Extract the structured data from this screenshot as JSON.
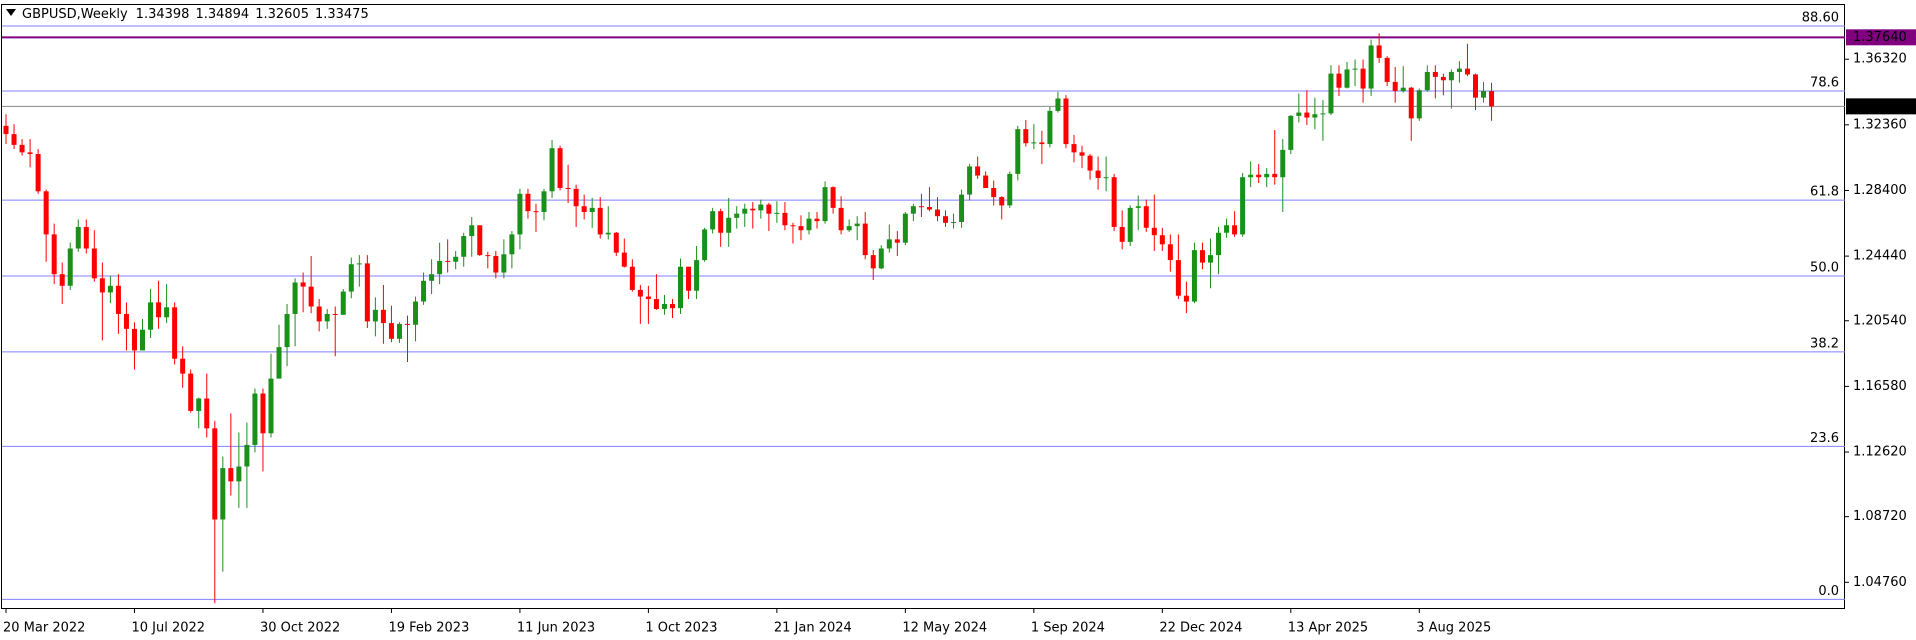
{
  "chart_data": {
    "type": "candlestick",
    "title": "GBPUSD,Weekly",
    "up_color": "#1a8f1a",
    "down_color": "#ff0000",
    "ylim": [
      1.0315,
      1.3965
    ],
    "yticks": [
      {
        "value": 1.3632,
        "label": "1.36320"
      },
      {
        "value": 1.3236,
        "label": "1.32360"
      },
      {
        "value": 1.284,
        "label": "1.28400"
      },
      {
        "value": 1.2444,
        "label": "1.24440"
      },
      {
        "value": 1.2054,
        "label": "1.20540"
      },
      {
        "value": 1.1658,
        "label": "1.16580"
      },
      {
        "value": 1.1262,
        "label": "1.12620"
      },
      {
        "value": 1.0872,
        "label": "1.08720"
      },
      {
        "value": 1.0476,
        "label": "1.04760"
      }
    ],
    "levels_color": "#8080ff",
    "levels": [
      {
        "price": 1.3832,
        "label": "88.60"
      },
      {
        "price": 1.344,
        "label": "78.6"
      },
      {
        "price": 1.2782,
        "label": "61.8"
      },
      {
        "price": 1.2324,
        "label": "50.0"
      },
      {
        "price": 1.1866,
        "label": "38.2"
      },
      {
        "price": 1.1296,
        "label": "23.6"
      },
      {
        "price": 1.0373,
        "label": "0.0"
      }
    ],
    "price_line": {
      "value": 1.3764,
      "label": "1.37640",
      "color": "#800080"
    },
    "categories": [
      "20 Mar 2022",
      null,
      null,
      null,
      null,
      null,
      null,
      null,
      null,
      null,
      null,
      null,
      null,
      null,
      null,
      null,
      "10 Jul 2022",
      null,
      null,
      null,
      null,
      null,
      null,
      null,
      null,
      null,
      null,
      null,
      null,
      null,
      null,
      null,
      "30 Oct 2022",
      null,
      null,
      null,
      null,
      null,
      null,
      null,
      null,
      null,
      null,
      null,
      null,
      null,
      null,
      null,
      "19 Feb 2023",
      null,
      null,
      null,
      null,
      null,
      null,
      null,
      null,
      null,
      null,
      null,
      null,
      null,
      null,
      null,
      "11 Jun 2023",
      null,
      null,
      null,
      null,
      null,
      null,
      null,
      null,
      null,
      null,
      null,
      null,
      null,
      null,
      null,
      "1 Oct 2023",
      null,
      null,
      null,
      null,
      null,
      null,
      null,
      null,
      null,
      null,
      null,
      null,
      null,
      null,
      null,
      "21 Jan 2024",
      null,
      null,
      null,
      null,
      null,
      null,
      null,
      null,
      null,
      null,
      null,
      null,
      null,
      null,
      null,
      "12 May 2024",
      null,
      null,
      null,
      null,
      null,
      null,
      null,
      null,
      null,
      null,
      null,
      null,
      null,
      null,
      null,
      "1 Sep 2024",
      null,
      null,
      null,
      null,
      null,
      null,
      null,
      null,
      null,
      null,
      null,
      null,
      null,
      null,
      null,
      "22 Dec 2024",
      null,
      null,
      null,
      null,
      null,
      null,
      null,
      null,
      null,
      null,
      null,
      null,
      null,
      null,
      null,
      "13 Apr 2025",
      null,
      null,
      null,
      null,
      null,
      null,
      null,
      null,
      null,
      null,
      null,
      null,
      null,
      null,
      null,
      "3 Aug 2025",
      null,
      null,
      null,
      null,
      null,
      null,
      null,
      null,
      null
    ],
    "open": [
      1.323,
      1.318,
      1.3115,
      1.307,
      1.306,
      1.2835,
      1.2575,
      1.2335,
      1.2265,
      1.249,
      1.262,
      1.249,
      1.231,
      1.2225,
      1.2265,
      1.2095,
      1.2005,
      1.1875,
      1.2,
      1.2165,
      1.2075,
      1.2135,
      1.1825,
      1.1735,
      1.151,
      1.1585,
      1.1405,
      1.0855,
      1.1165,
      1.1085,
      1.1175,
      1.1305,
      1.1615,
      1.1375,
      1.1705,
      1.1895,
      1.2095,
      1.2285,
      1.226,
      1.214,
      1.205,
      1.2095,
      1.209,
      1.223,
      1.2395,
      1.24,
      1.205,
      1.212,
      1.204,
      1.1945,
      1.2035,
      1.203,
      1.217,
      1.2295,
      1.2335,
      1.2415,
      1.241,
      1.244,
      1.2565,
      1.263,
      1.245,
      1.2445,
      1.2345,
      1.2455,
      1.2575,
      1.282,
      1.2715,
      1.271,
      1.2835,
      1.3095,
      1.2855,
      1.285,
      1.2745,
      1.271,
      1.2735,
      1.2575,
      1.2585,
      1.2465,
      1.238,
      1.224,
      1.22,
      1.2185,
      1.2125,
      1.2155,
      1.213,
      1.238,
      1.2235,
      1.242,
      1.2605,
      1.2715,
      1.2585,
      1.2675,
      1.27,
      1.273,
      1.272,
      1.2755,
      1.27,
      1.2705,
      1.263,
      1.2625,
      1.26,
      1.267,
      1.2655,
      1.286,
      1.2735,
      1.26,
      1.2625,
      1.264,
      1.245,
      1.237,
      1.249,
      1.2545,
      1.2525,
      1.27,
      1.2745,
      1.274,
      1.2725,
      1.2685,
      1.2645,
      1.265,
      1.2815,
      1.2985,
      1.293,
      1.2855,
      1.28,
      1.275,
      1.294,
      1.321,
      1.3125,
      1.313,
      1.312,
      1.332,
      1.3395,
      1.312,
      1.307,
      1.305,
      1.296,
      1.2915,
      1.292,
      1.262,
      1.253,
      1.2735,
      1.2745,
      1.2615,
      1.257,
      1.2515,
      1.242,
      1.2205,
      1.217,
      1.248,
      1.2405,
      1.245,
      1.2585,
      1.263,
      1.2575,
      1.292,
      1.2935,
      1.292,
      1.294,
      1.292,
      1.3085,
      1.329,
      1.331,
      1.328,
      1.33,
      1.3305,
      1.3545,
      1.346,
      1.357,
      1.3575,
      1.3455,
      1.3715,
      1.364,
      1.3495,
      1.344,
      1.346,
      1.3275,
      1.3445,
      1.3555,
      1.3525,
      1.3505,
      1.3555,
      1.3575,
      1.354,
      1.34,
      1.34398
    ],
    "high": [
      1.33,
      1.324,
      1.315,
      1.315,
      1.309,
      1.2845,
      1.264,
      1.2405,
      1.2525,
      1.2665,
      1.2665,
      1.26,
      1.2405,
      1.2325,
      1.2335,
      1.2165,
      1.2045,
      1.2065,
      1.2245,
      1.2295,
      1.2275,
      1.2165,
      1.19,
      1.176,
      1.159,
      1.1735,
      1.145,
      1.1235,
      1.1495,
      1.138,
      1.144,
      1.1645,
      1.1645,
      1.1855,
      1.203,
      1.2155,
      1.231,
      1.2345,
      1.2445,
      1.2185,
      1.2125,
      1.214,
      1.2245,
      1.2435,
      1.245,
      1.245,
      1.2195,
      1.227,
      1.2145,
      1.2045,
      1.2085,
      1.22,
      1.2345,
      1.2425,
      1.2525,
      1.2545,
      1.2475,
      1.2585,
      1.268,
      1.263,
      1.247,
      1.2475,
      1.2545,
      1.2595,
      1.285,
      1.285,
      1.276,
      1.285,
      1.3145,
      1.311,
      1.2995,
      1.2875,
      1.2815,
      1.2795,
      1.28,
      1.2745,
      1.259,
      1.255,
      1.2425,
      1.227,
      1.2265,
      1.2335,
      1.221,
      1.2185,
      1.243,
      1.238,
      1.2505,
      1.2615,
      1.2735,
      1.273,
      1.2795,
      1.2745,
      1.276,
      1.277,
      1.2785,
      1.2765,
      1.2775,
      1.277,
      1.2645,
      1.269,
      1.271,
      1.271,
      1.2895,
      1.2865,
      1.2805,
      1.2665,
      1.2685,
      1.271,
      1.248,
      1.251,
      1.2635,
      1.2595,
      1.271,
      1.276,
      1.282,
      1.286,
      1.28,
      1.272,
      1.27,
      1.2845,
      1.3,
      1.3045,
      1.2955,
      1.29,
      1.2805,
      1.2955,
      1.323,
      1.3265,
      1.324,
      1.32,
      1.3345,
      1.3435,
      1.3415,
      1.3175,
      1.311,
      1.306,
      1.3045,
      1.3045,
      1.294,
      1.272,
      1.275,
      1.281,
      1.2785,
      1.2815,
      1.2615,
      1.2575,
      1.2575,
      1.229,
      1.2525,
      1.2525,
      1.255,
      1.262,
      1.267,
      1.2715,
      1.2945,
      1.3015,
      1.3,
      1.2975,
      1.3205,
      1.315,
      1.3295,
      1.3425,
      1.3445,
      1.34,
      1.3385,
      1.3595,
      1.3595,
      1.3615,
      1.363,
      1.363,
      1.375,
      1.3788,
      1.365,
      1.3585,
      1.359,
      1.3465,
      1.3455,
      1.3595,
      1.3595,
      1.3545,
      1.357,
      1.362,
      1.3725,
      1.3545,
      1.3495,
      1.34894
    ],
    "low": [
      1.312,
      1.309,
      1.305,
      1.298,
      1.282,
      1.241,
      1.2275,
      1.2155,
      1.224,
      1.247,
      1.246,
      1.229,
      1.1935,
      1.216,
      1.1975,
      1.1875,
      1.176,
      1.189,
      1.195,
      1.2005,
      1.204,
      1.179,
      1.165,
      1.15,
      1.1405,
      1.135,
      1.035,
      1.054,
      1.1,
      1.0925,
      1.0925,
      1.126,
      1.1145,
      1.135,
      1.171,
      1.178,
      1.19,
      1.2105,
      1.21,
      1.199,
      1.2005,
      1.184,
      1.209,
      1.219,
      1.226,
      1.201,
      1.196,
      1.1915,
      1.1925,
      1.192,
      1.1805,
      1.193,
      1.215,
      1.2215,
      1.2275,
      1.2345,
      1.2365,
      1.238,
      1.244,
      1.2445,
      1.237,
      1.231,
      1.231,
      1.237,
      1.2485,
      1.267,
      1.259,
      1.266,
      1.2795,
      1.284,
      1.2765,
      1.262,
      1.2665,
      1.2615,
      1.255,
      1.2545,
      1.2445,
      1.2375,
      1.223,
      1.2035,
      1.2035,
      1.212,
      1.209,
      1.207,
      1.2095,
      1.2185,
      1.2185,
      1.241,
      1.258,
      1.25,
      1.25,
      1.261,
      1.262,
      1.261,
      1.267,
      1.2595,
      1.2645,
      1.26,
      1.252,
      1.254,
      1.2575,
      1.261,
      1.264,
      1.27,
      1.2575,
      1.259,
      1.254,
      1.2425,
      1.23,
      1.2365,
      1.2465,
      1.2445,
      1.251,
      1.2655,
      1.268,
      1.2715,
      1.2655,
      1.262,
      1.261,
      1.2615,
      1.278,
      1.291,
      1.2855,
      1.275,
      1.2665,
      1.2735,
      1.29,
      1.3105,
      1.309,
      1.3,
      1.31,
      1.331,
      1.3095,
      1.301,
      1.2975,
      1.2905,
      1.2845,
      1.2835,
      1.2595,
      1.2485,
      1.2505,
      1.26,
      1.259,
      1.2475,
      1.2475,
      1.235,
      1.2185,
      1.21,
      1.216,
      1.2365,
      1.225,
      1.2335,
      1.2555,
      1.256,
      1.256,
      1.286,
      1.2885,
      1.286,
      1.2875,
      1.271,
      1.306,
      1.325,
      1.3235,
      1.321,
      1.314,
      1.3295,
      1.341,
      1.3455,
      1.347,
      1.337,
      1.341,
      1.361,
      1.347,
      1.337,
      1.343,
      1.314,
      1.326,
      1.3435,
      1.3395,
      1.3415,
      1.3335,
      1.349,
      1.353,
      1.3325,
      1.337,
      1.32605
    ],
    "close": [
      1.318,
      1.3115,
      1.307,
      1.306,
      1.2835,
      1.2575,
      1.2335,
      1.2265,
      1.249,
      1.262,
      1.249,
      1.231,
      1.2225,
      1.2265,
      1.2095,
      1.2005,
      1.1875,
      1.2,
      1.2165,
      1.2075,
      1.2135,
      1.1825,
      1.1735,
      1.151,
      1.1585,
      1.1405,
      1.0855,
      1.1165,
      1.1085,
      1.1175,
      1.1305,
      1.1615,
      1.1375,
      1.1705,
      1.1895,
      1.2095,
      1.2285,
      1.226,
      1.214,
      1.205,
      1.2095,
      1.209,
      1.223,
      1.2395,
      1.24,
      1.205,
      1.212,
      1.204,
      1.1945,
      1.2035,
      1.203,
      1.217,
      1.2295,
      1.2335,
      1.2415,
      1.241,
      1.244,
      1.2565,
      1.263,
      1.245,
      1.2445,
      1.2345,
      1.2455,
      1.2575,
      1.282,
      1.2715,
      1.271,
      1.2835,
      1.3095,
      1.2855,
      1.285,
      1.2745,
      1.271,
      1.2735,
      1.2575,
      1.2585,
      1.2465,
      1.238,
      1.224,
      1.22,
      1.2185,
      1.2125,
      1.2155,
      1.213,
      1.238,
      1.2235,
      1.242,
      1.2605,
      1.2715,
      1.2585,
      1.2675,
      1.27,
      1.273,
      1.272,
      1.2755,
      1.27,
      1.2705,
      1.263,
      1.2625,
      1.26,
      1.267,
      1.2655,
      1.286,
      1.2735,
      1.26,
      1.2625,
      1.264,
      1.245,
      1.237,
      1.249,
      1.2545,
      1.2525,
      1.27,
      1.2745,
      1.274,
      1.2725,
      1.2685,
      1.2645,
      1.265,
      1.2815,
      1.2985,
      1.293,
      1.2855,
      1.28,
      1.275,
      1.294,
      1.321,
      1.3125,
      1.313,
      1.312,
      1.332,
      1.3395,
      1.312,
      1.307,
      1.305,
      1.296,
      1.2915,
      1.292,
      1.262,
      1.253,
      1.2735,
      1.2745,
      1.2615,
      1.257,
      1.2515,
      1.242,
      1.2205,
      1.217,
      1.248,
      1.2405,
      1.245,
      1.2585,
      1.263,
      1.2575,
      1.292,
      1.2935,
      1.292,
      1.294,
      1.292,
      1.3085,
      1.329,
      1.331,
      1.328,
      1.33,
      1.3305,
      1.3545,
      1.346,
      1.357,
      1.3575,
      1.3455,
      1.3715,
      1.364,
      1.3495,
      1.344,
      1.346,
      1.3275,
      1.3445,
      1.3555,
      1.3525,
      1.3505,
      1.3555,
      1.3575,
      1.354,
      1.34,
      1.34398,
      1.33475
    ]
  }
}
